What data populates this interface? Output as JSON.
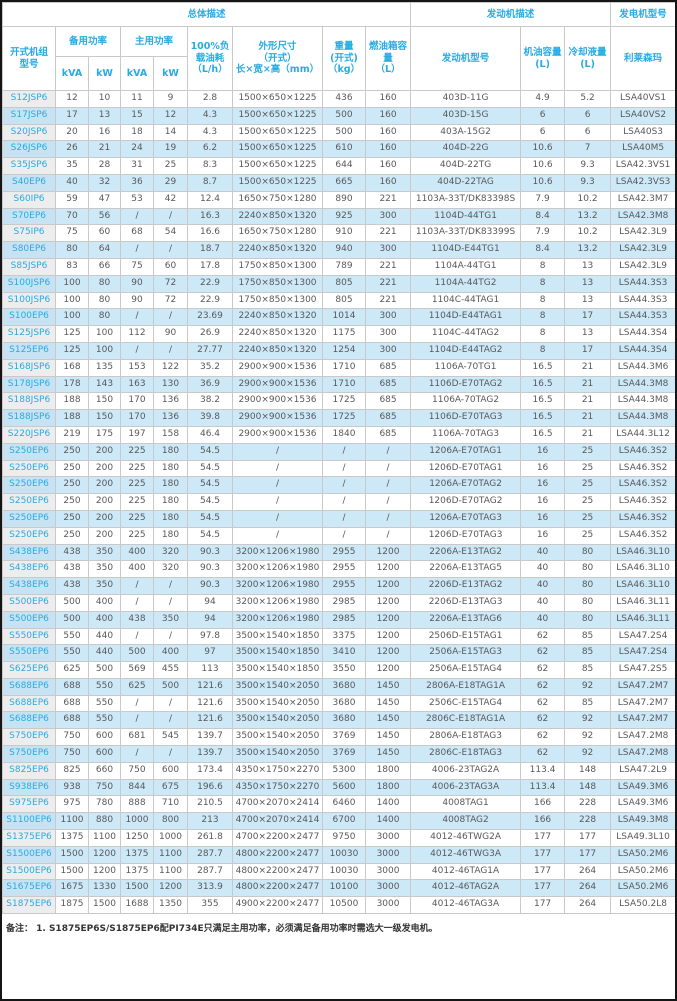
{
  "colors": {
    "accent_blue": "#29abe2",
    "stripe_blue": "#cde9f8",
    "model_col_gray": "#ededed",
    "grid_border": "#c9c9c9",
    "body_text": "#58595b"
  },
  "table": {
    "header": {
      "group_overall": "总体描述",
      "group_engine": "发动机描述",
      "group_genset": "发电机型号",
      "col_model": "开式机组\n型号",
      "col_standby_power": "备用功率",
      "col_prime_power": "主用功率",
      "unit_kva": "kVA",
      "unit_kw": "kW",
      "col_fuel_consumption": "100%负\n载油耗\n（L/h）",
      "col_dimensions": "外形尺寸\n（开式）\n长×宽×高（mm）",
      "col_weight": "重量\n(开式)\n（kg）",
      "col_tank": "燃油箱容\n量\n（L）",
      "col_engine_model": "发动机型号",
      "col_oil_capacity": "机油容量\n(L)",
      "col_coolant_capacity": "冷却液量\n(L)",
      "col_alternator": "利莱森玛"
    },
    "rows": [
      [
        "S12JSP6",
        "12",
        "10",
        "11",
        "9",
        "2.8",
        "1500×650×1225",
        "436",
        "160",
        "403D-11G",
        "4.9",
        "5.2",
        "LSA40VS1"
      ],
      [
        "S17JSP6",
        "17",
        "13",
        "15",
        "12",
        "4.3",
        "1500×650×1225",
        "500",
        "160",
        "403D-15G",
        "6",
        "6",
        "LSA40VS2"
      ],
      [
        "S20JSP6",
        "20",
        "16",
        "18",
        "14",
        "4.3",
        "1500×650×1225",
        "500",
        "160",
        "403A-15G2",
        "6",
        "6",
        "LSA40S3"
      ],
      [
        "S26JSP6",
        "26",
        "21",
        "24",
        "19",
        "6.2",
        "1500×650×1225",
        "610",
        "160",
        "404D-22G",
        "10.6",
        "7",
        "LSA40M5"
      ],
      [
        "S35JSP6",
        "35",
        "28",
        "31",
        "25",
        "8.3",
        "1500×650×1225",
        "644",
        "160",
        "404D-22TG",
        "10.6",
        "9.3",
        "LSA42.3VS1"
      ],
      [
        "S40EP6",
        "40",
        "32",
        "36",
        "29",
        "8.7",
        "1500×650×1225",
        "665",
        "160",
        "404D-22TAG",
        "10.6",
        "9.3",
        "LSA42.3VS3"
      ],
      [
        "S60IP6",
        "59",
        "47",
        "53",
        "42",
        "12.4",
        "1650×750×1280",
        "890",
        "221",
        "1103A-33T/DK83398S",
        "7.9",
        "10.2",
        "LSA42.3M7"
      ],
      [
        "S70EP6",
        "70",
        "56",
        "/",
        "/",
        "16.3",
        "2240×850×1320",
        "925",
        "300",
        "1104D-44TG1",
        "8.4",
        "13.2",
        "LSA42.3M8"
      ],
      [
        "S75IP6",
        "75",
        "60",
        "68",
        "54",
        "16.6",
        "1650×750×1280",
        "910",
        "221",
        "1103A-33T/DK83399S",
        "7.9",
        "10.2",
        "LSA42.3L9"
      ],
      [
        "S80EP6",
        "80",
        "64",
        "/",
        "/",
        "18.7",
        "2240×850×1320",
        "940",
        "300",
        "1104D-E44TG1",
        "8.4",
        "13.2",
        "LSA42.3L9"
      ],
      [
        "S85JSP6",
        "83",
        "66",
        "75",
        "60",
        "17.8",
        "1750×850×1300",
        "789",
        "221",
        "1104A-44TG1",
        "8",
        "13",
        "LSA42.3L9"
      ],
      [
        "S100JSP6",
        "100",
        "80",
        "90",
        "72",
        "22.9",
        "1750×850×1300",
        "805",
        "221",
        "1104A-44TG2",
        "8",
        "13",
        "LSA44.3S3"
      ],
      [
        "S100JSP6",
        "100",
        "80",
        "90",
        "72",
        "22.9",
        "1750×850×1300",
        "805",
        "221",
        "1104C-44TAG1",
        "8",
        "13",
        "LSA44.3S3"
      ],
      [
        "S100EP6",
        "100",
        "80",
        "/",
        "/",
        "23.69",
        "2240×850×1320",
        "1014",
        "300",
        "1104D-E44TAG1",
        "8",
        "17",
        "LSA44.3S3"
      ],
      [
        "S125JSP6",
        "125",
        "100",
        "112",
        "90",
        "26.9",
        "2240×850×1320",
        "1175",
        "300",
        "1104C-44TAG2",
        "8",
        "13",
        "LSA44.3S4"
      ],
      [
        "S125EP6",
        "125",
        "100",
        "/",
        "/",
        "27.77",
        "2240×850×1320",
        "1254",
        "300",
        "1104D-E44TAG2",
        "8",
        "17",
        "LSA44.3S4"
      ],
      [
        "S168JSP6",
        "168",
        "135",
        "153",
        "122",
        "35.2",
        "2900×900×1536",
        "1710",
        "685",
        "1106A-70TG1",
        "16.5",
        "21",
        "LSA44.3M6"
      ],
      [
        "S178JSP6",
        "178",
        "143",
        "163",
        "130",
        "36.9",
        "2900×900×1536",
        "1710",
        "685",
        "1106D-E70TAG2",
        "16.5",
        "21",
        "LSA44.3M8"
      ],
      [
        "S188JSP6",
        "188",
        "150",
        "170",
        "136",
        "38.2",
        "2900×900×1536",
        "1725",
        "685",
        "1106A-70TAG2",
        "16.5",
        "21",
        "LSA44.3M8"
      ],
      [
        "S188JSP6",
        "188",
        "150",
        "170",
        "136",
        "39.8",
        "2900×900×1536",
        "1725",
        "685",
        "1106D-E70TAG3",
        "16.5",
        "21",
        "LSA44.3M8"
      ],
      [
        "S220JSP6",
        "219",
        "175",
        "197",
        "158",
        "46.4",
        "2900×900×1536",
        "1840",
        "685",
        "1106A-70TAG3",
        "16.5",
        "21",
        "LSA44.3L12"
      ],
      [
        "S250EP6",
        "250",
        "200",
        "225",
        "180",
        "54.5",
        "/",
        "/",
        "/",
        "1206A-E70TAG1",
        "16",
        "25",
        "LSA46.3S2"
      ],
      [
        "S250EP6",
        "250",
        "200",
        "225",
        "180",
        "54.5",
        "/",
        "/",
        "/",
        "1206D-E70TAG1",
        "16",
        "25",
        "LSA46.3S2"
      ],
      [
        "S250EP6",
        "250",
        "200",
        "225",
        "180",
        "54.5",
        "/",
        "/",
        "/",
        "1206A-E70TAG2",
        "16",
        "25",
        "LSA46.3S2"
      ],
      [
        "S250EP6",
        "250",
        "200",
        "225",
        "180",
        "54.5",
        "/",
        "/",
        "/",
        "1206D-E70TAG2",
        "16",
        "25",
        "LSA46.3S2"
      ],
      [
        "S250EP6",
        "250",
        "200",
        "225",
        "180",
        "54.5",
        "/",
        "/",
        "/",
        "1206A-E70TAG3",
        "16",
        "25",
        "LSA46.3S2"
      ],
      [
        "S250EP6",
        "250",
        "200",
        "225",
        "180",
        "54.5",
        "/",
        "/",
        "/",
        "1206D-E70TAG3",
        "16",
        "25",
        "LSA46.3S2"
      ],
      [
        "S438EP6",
        "438",
        "350",
        "400",
        "320",
        "90.3",
        "3200×1206×1980",
        "2955",
        "1200",
        "2206A-E13TAG2",
        "40",
        "80",
        "LSA46.3L10"
      ],
      [
        "S438EP6",
        "438",
        "350",
        "400",
        "320",
        "90.3",
        "3200×1206×1980",
        "2955",
        "1200",
        "2206A-E13TAG5",
        "40",
        "80",
        "LSA46.3L10"
      ],
      [
        "S438EP6",
        "438",
        "350",
        "/",
        "/",
        "90.3",
        "3200×1206×1980",
        "2955",
        "1200",
        "2206D-E13TAG2",
        "40",
        "80",
        "LSA46.3L10"
      ],
      [
        "S500EP6",
        "500",
        "400",
        "/",
        "/",
        "94",
        "3200×1206×1980",
        "2985",
        "1200",
        "2206D-E13TAG3",
        "40",
        "80",
        "LSA46.3L11"
      ],
      [
        "S500EP6",
        "500",
        "400",
        "438",
        "350",
        "94",
        "3200×1206×1980",
        "2985",
        "1200",
        "2206A-E13TAG6",
        "40",
        "80",
        "LSA46.3L11"
      ],
      [
        "S550EP6",
        "550",
        "440",
        "/",
        "/",
        "97.8",
        "3500×1540×1850",
        "3375",
        "1200",
        "2506D-E15TAG1",
        "62",
        "85",
        "LSA47.2S4"
      ],
      [
        "S550EP6",
        "550",
        "440",
        "500",
        "400",
        "97",
        "3500×1540×1850",
        "3410",
        "1200",
        "2506A-E15TAG3",
        "62",
        "85",
        "LSA47.2S4"
      ],
      [
        "S625EP6",
        "625",
        "500",
        "569",
        "455",
        "113",
        "3500×1540×1850",
        "3550",
        "1200",
        "2506A-E15TAG4",
        "62",
        "85",
        "LSA47.2S5"
      ],
      [
        "S688EP6",
        "688",
        "550",
        "625",
        "500",
        "121.6",
        "3500×1540×2050",
        "3680",
        "1450",
        "2806A-E18TAG1A",
        "62",
        "92",
        "LSA47.2M7"
      ],
      [
        "S688EP6",
        "688",
        "550",
        "/",
        "/",
        "121.6",
        "3500×1540×2050",
        "3680",
        "1450",
        "2506C-E15TAG4",
        "62",
        "85",
        "LSA47.2M7"
      ],
      [
        "S688EP6",
        "688",
        "550",
        "/",
        "/",
        "121.6",
        "3500×1540×2050",
        "3680",
        "1450",
        "2806C-E18TAG1A",
        "62",
        "92",
        "LSA47.2M7"
      ],
      [
        "S750EP6",
        "750",
        "600",
        "681",
        "545",
        "139.7",
        "3500×1540×2050",
        "3769",
        "1450",
        "2806A-E18TAG3",
        "62",
        "92",
        "LSA47.2M8"
      ],
      [
        "S750EP6",
        "750",
        "600",
        "/",
        "/",
        "139.7",
        "3500×1540×2050",
        "3769",
        "1450",
        "2806C-E18TAG3",
        "62",
        "92",
        "LSA47.2M8"
      ],
      [
        "S825EP6",
        "825",
        "660",
        "750",
        "600",
        "173.4",
        "4350×1750×2270",
        "5300",
        "1800",
        "4006-23TAG2A",
        "113.4",
        "148",
        "LSA47.2L9"
      ],
      [
        "S938EP6",
        "938",
        "750",
        "844",
        "675",
        "196.6",
        "4350×1750×2270",
        "5600",
        "1800",
        "4006-23TAG3A",
        "113.4",
        "148",
        "LSA49.3M6"
      ],
      [
        "S975EP6",
        "975",
        "780",
        "888",
        "710",
        "210.5",
        "4700×2070×2414",
        "6460",
        "1400",
        "4008TAG1",
        "166",
        "228",
        "LSA49.3M6"
      ],
      [
        "S1100EP6",
        "1100",
        "880",
        "1000",
        "800",
        "213",
        "4700×2070×2414",
        "6700",
        "1400",
        "4008TAG2",
        "166",
        "228",
        "LSA49.3M8"
      ],
      [
        "S1375EP6",
        "1375",
        "1100",
        "1250",
        "1000",
        "261.8",
        "4700×2200×2477",
        "9750",
        "3000",
        "4012-46TWG2A",
        "177",
        "177",
        "LSA49.3L10"
      ],
      [
        "S1500EP6",
        "1500",
        "1200",
        "1375",
        "1100",
        "287.7",
        "4800×2200×2477",
        "10030",
        "3000",
        "4012-46TWG3A",
        "177",
        "177",
        "LSA50.2M6"
      ],
      [
        "S1500EP6",
        "1500",
        "1200",
        "1375",
        "1100",
        "287.7",
        "4800×2200×2477",
        "10030",
        "3000",
        "4012-46TAG1A",
        "177",
        "264",
        "LSA50.2M6"
      ],
      [
        "S1675EP6",
        "1675",
        "1330",
        "1500",
        "1200",
        "313.9",
        "4800×2200×2477",
        "10100",
        "3000",
        "4012-46TAG2A",
        "177",
        "264",
        "LSA50.2M6"
      ],
      [
        "S1875EP6",
        "1875",
        "1500",
        "1688",
        "1350",
        "355",
        "4900×2200×2477",
        "10500",
        "3000",
        "4012-46TAG3A",
        "177",
        "264",
        "LSA50.2L8"
      ]
    ]
  },
  "note": "备注：  1. S1875EP6S/S1875EP6配PI734E只满足主用功率，必须满足备用功率时需选大一级发电机。"
}
